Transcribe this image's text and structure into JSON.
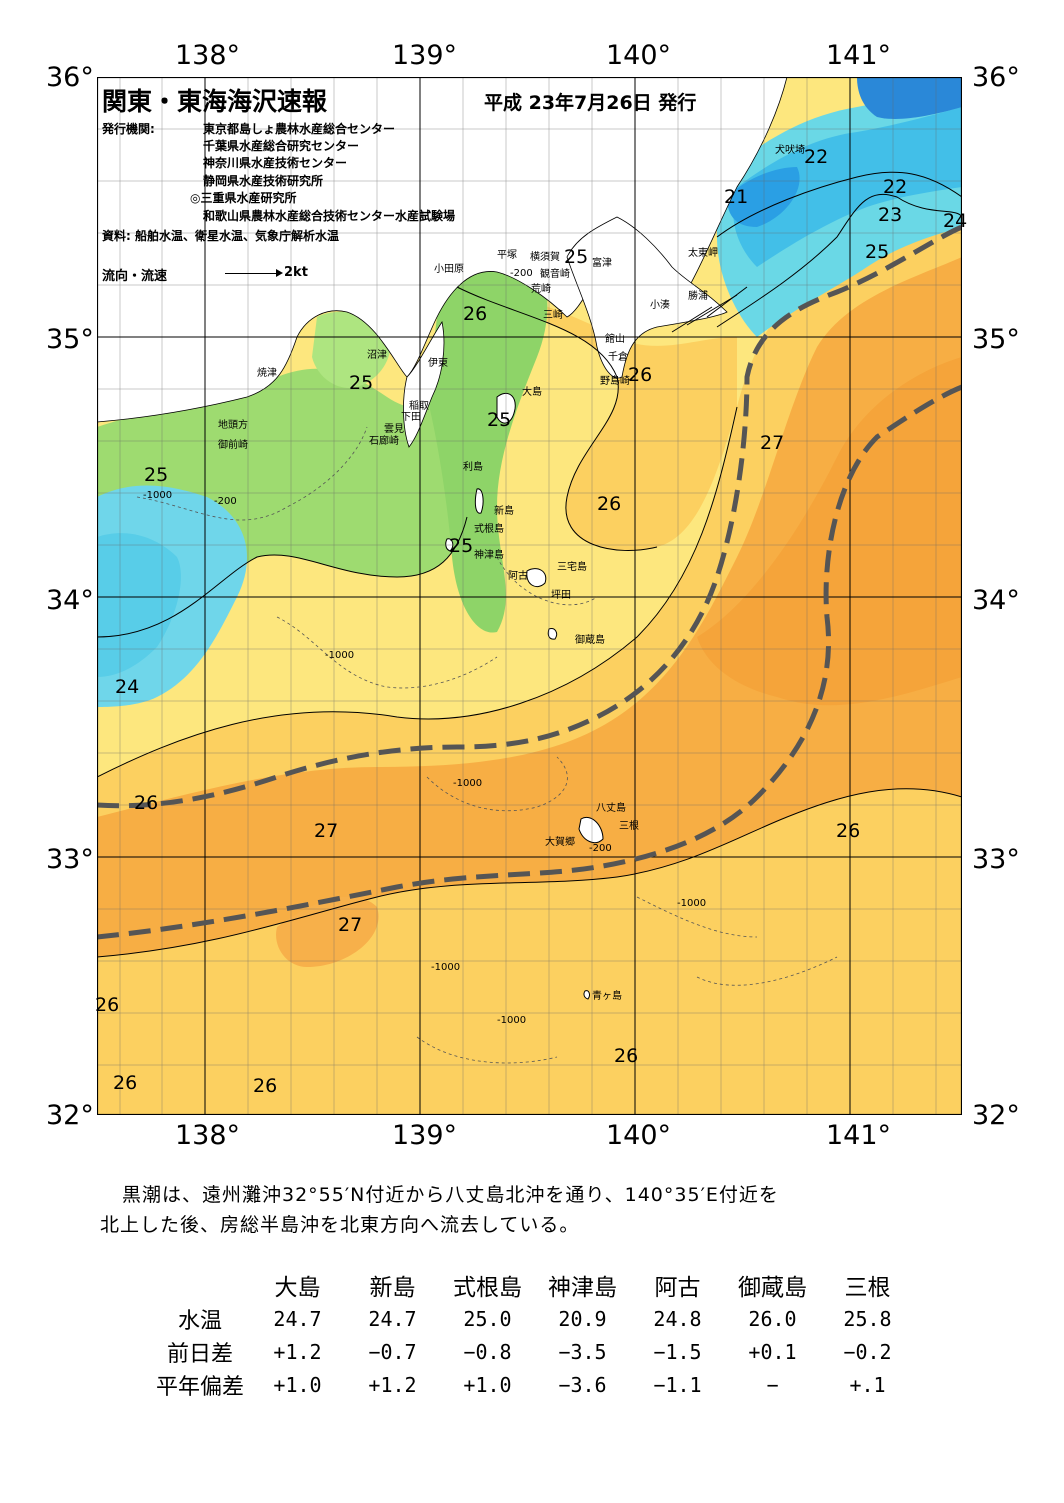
{
  "title": "関東・東海海沢速報",
  "issue_date": "平成 23年7月26日 発行",
  "issuer_label": "発行機関:",
  "issuers": [
    "東京都島しょ農林水産総合センター",
    "千葉県水産総合研究センター",
    "神奈川県水産技術センター",
    "静岡県水産技術研究所",
    "◎三重県水産研究所",
    "和歌山県農林水産総合技術センター水産試験場"
  ],
  "source": "資料: 船舶水温、衛星水温、気象庁解析水温",
  "legend": {
    "label": "流向・流速",
    "scale": "2kt"
  },
  "axes": {
    "lon_top": [
      "138°",
      "139°",
      "140°",
      "141°"
    ],
    "lon_bottom": [
      "138°",
      "139°",
      "140°",
      "141°"
    ],
    "lat_left": [
      "36°",
      "35°",
      "34°",
      "33°",
      "32°"
    ],
    "lat_right": [
      "36°",
      "35°",
      "34°",
      "33°",
      "32°"
    ]
  },
  "isotherm_labels": [
    "22",
    "22",
    "21",
    "23",
    "24",
    "25",
    "25",
    "25",
    "26",
    "26",
    "25",
    "25",
    "25",
    "26",
    "27",
    "26",
    "24",
    "26",
    "27",
    "26",
    "27",
    "26",
    "26",
    "26",
    "26"
  ],
  "depth_labels": [
    "-200",
    "-1000"
  ],
  "places": [
    "犬吠埼",
    "太東岬",
    "勝浦",
    "小湊",
    "富津",
    "横須賀",
    "観音崎",
    "平塚",
    "小田原",
    "荒崎",
    "三崎",
    "館山",
    "千倉",
    "野島崎",
    "沼津",
    "伊東",
    "焼津",
    "稲取",
    "下田",
    "雲見",
    "石廊崎",
    "地頭方",
    "御前崎",
    "大島",
    "利島",
    "新島",
    "式根島",
    "神津島",
    "三宅島",
    "阿古",
    "坪田",
    "御蔵島",
    "八丈島",
    "三根",
    "大賀郷",
    "青ヶ島"
  ],
  "summary": [
    "黒潮は、遠州灘沖32°55′N付近から八丈島北沖を通り、140°35′E付近を",
    "北上した後、房総半島沖を北東方向へ流去している。"
  ],
  "table": {
    "columns": [
      "大島",
      "新島",
      "式根島",
      "神津島",
      "阿古",
      "御蔵島",
      "三根"
    ],
    "rows": [
      {
        "label": "水温",
        "values": [
          "24.7",
          "24.7",
          "25.0",
          "20.9",
          "24.8",
          "26.0",
          "25.8"
        ]
      },
      {
        "label": "前日差",
        "values": [
          "+1.2",
          "−0.7",
          "−0.8",
          "−3.5",
          "−1.5",
          "+0.1",
          "−0.2"
        ]
      },
      {
        "label": "平年偏差",
        "values": [
          "+1.0",
          "+1.2",
          "+1.0",
          "−3.6",
          "−1.1",
          "−",
          "+.1"
        ]
      }
    ]
  },
  "colors": {
    "warm27": "#f5a43a",
    "warm26": "#fcc85a",
    "warm25": "#fde77e",
    "green24": "#8fd46a",
    "cyan23": "#6ad8e6",
    "blue21": "#2aa8e8",
    "kuroshio": "#555555"
  }
}
